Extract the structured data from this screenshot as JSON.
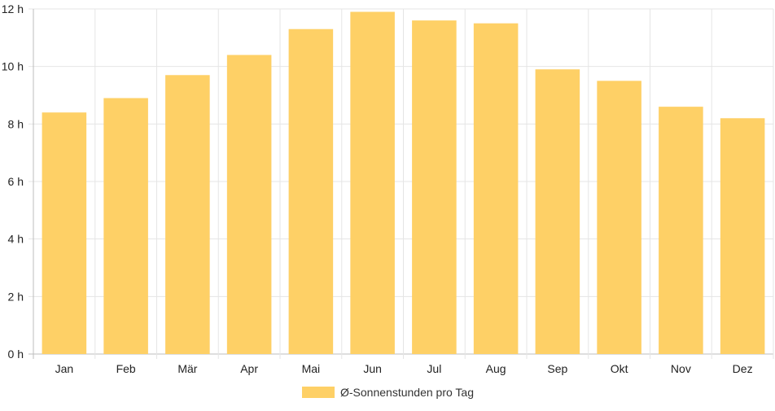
{
  "chart_data": {
    "type": "bar",
    "categories": [
      "Jan",
      "Feb",
      "Mär",
      "Apr",
      "Mai",
      "Jun",
      "Jul",
      "Aug",
      "Sep",
      "Okt",
      "Nov",
      "Dez"
    ],
    "series": [
      {
        "name": "Ø-Sonnenstunden pro Tag",
        "values": [
          8.4,
          8.9,
          9.7,
          10.4,
          11.3,
          11.9,
          11.6,
          11.5,
          9.9,
          9.5,
          8.6,
          8.2
        ]
      }
    ],
    "y_ticks": [
      "0 h",
      "2 h",
      "4 h",
      "6 h",
      "8 h",
      "10 h",
      "12 h"
    ],
    "ylim": [
      0,
      12
    ],
    "grid": true,
    "legend_position": "bottom",
    "bar_color": "#fed066"
  }
}
